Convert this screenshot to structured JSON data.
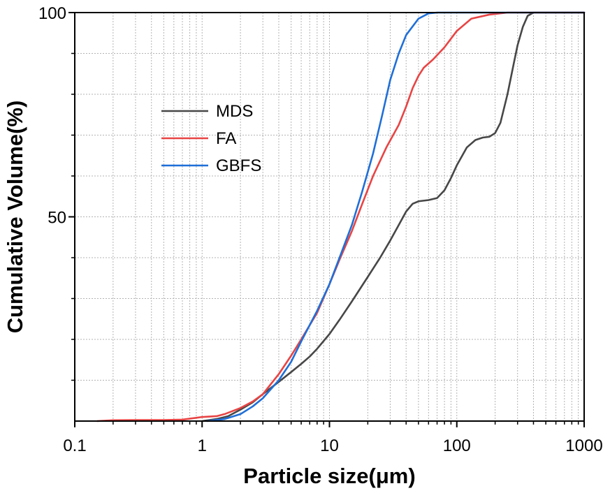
{
  "chart_data": {
    "type": "line",
    "title": "",
    "xlabel": "Particle size(μm)",
    "ylabel": "Cumulative Volume(%)",
    "x_scale": "log",
    "xlim": [
      0.1,
      1000
    ],
    "ylim": [
      0,
      100
    ],
    "x_ticks": [
      0.1,
      1,
      10,
      100,
      1000
    ],
    "x_tick_labels": [
      "0.1",
      "1",
      "10",
      "100",
      "1000"
    ],
    "y_ticks": [
      50,
      100
    ],
    "y_tick_labels": [
      "50",
      "100"
    ],
    "grid": true,
    "legend": "upper-left",
    "series": [
      {
        "name": "MDS",
        "color": "#474747",
        "points": [
          [
            1,
            0
          ],
          [
            1.3,
            0.5
          ],
          [
            1.6,
            1.2
          ],
          [
            2,
            2.8
          ],
          [
            2.5,
            4.6
          ],
          [
            3,
            6.6
          ],
          [
            4,
            9.6
          ],
          [
            5,
            12
          ],
          [
            6,
            14
          ],
          [
            7,
            15.8
          ],
          [
            8,
            17.7
          ],
          [
            10,
            21.3
          ],
          [
            12,
            24.8
          ],
          [
            15,
            29.3
          ],
          [
            20,
            35.3
          ],
          [
            25,
            40
          ],
          [
            30,
            44.2
          ],
          [
            35,
            48
          ],
          [
            40,
            51.3
          ],
          [
            45,
            53.2
          ],
          [
            50,
            53.8
          ],
          [
            60,
            54.1
          ],
          [
            70,
            54.6
          ],
          [
            80,
            56.5
          ],
          [
            90,
            59.5
          ],
          [
            100,
            62.6
          ],
          [
            120,
            67
          ],
          [
            140,
            68.8
          ],
          [
            160,
            69.4
          ],
          [
            180,
            69.6
          ],
          [
            200,
            70.5
          ],
          [
            220,
            73
          ],
          [
            250,
            80
          ],
          [
            280,
            87.5
          ],
          [
            300,
            92
          ],
          [
            330,
            96.5
          ],
          [
            360,
            99.2
          ],
          [
            400,
            100
          ],
          [
            1000,
            100
          ]
        ]
      },
      {
        "name": "FA",
        "color": "#e84444",
        "points": [
          [
            0.15,
            0
          ],
          [
            0.2,
            0.2
          ],
          [
            0.3,
            0.25
          ],
          [
            0.5,
            0.25
          ],
          [
            0.7,
            0.35
          ],
          [
            0.9,
            0.8
          ],
          [
            1,
            1
          ],
          [
            1.3,
            1.2
          ],
          [
            1.5,
            1.7
          ],
          [
            2,
            3.2
          ],
          [
            2.5,
            4.8
          ],
          [
            3,
            6.6
          ],
          [
            4,
            11.5
          ],
          [
            5,
            16
          ],
          [
            6,
            20
          ],
          [
            8,
            26.5
          ],
          [
            10,
            33.5
          ],
          [
            12,
            39.5
          ],
          [
            15,
            46.5
          ],
          [
            18,
            53
          ],
          [
            22,
            60
          ],
          [
            28,
            67
          ],
          [
            35,
            72.5
          ],
          [
            40,
            77
          ],
          [
            45,
            81.5
          ],
          [
            50,
            84.5
          ],
          [
            55,
            86.5
          ],
          [
            65,
            88.5
          ],
          [
            80,
            91.5
          ],
          [
            100,
            95.5
          ],
          [
            130,
            98.5
          ],
          [
            180,
            99.5
          ],
          [
            250,
            100
          ],
          [
            1000,
            100
          ]
        ]
      },
      {
        "name": "GBFS",
        "color": "#1f6fd8",
        "points": [
          [
            1.1,
            0
          ],
          [
            1.5,
            0.5
          ],
          [
            2,
            1.7
          ],
          [
            2.5,
            3.6
          ],
          [
            3,
            5.6
          ],
          [
            4,
            10
          ],
          [
            5,
            14.5
          ],
          [
            6,
            19.5
          ],
          [
            8,
            27
          ],
          [
            10,
            33.5
          ],
          [
            12,
            40
          ],
          [
            15,
            48
          ],
          [
            18,
            56
          ],
          [
            22,
            65.5
          ],
          [
            26,
            75
          ],
          [
            30,
            83.5
          ],
          [
            35,
            90
          ],
          [
            40,
            94.5
          ],
          [
            50,
            98.5
          ],
          [
            60,
            99.8
          ],
          [
            70,
            100
          ],
          [
            1000,
            100
          ]
        ]
      }
    ]
  }
}
